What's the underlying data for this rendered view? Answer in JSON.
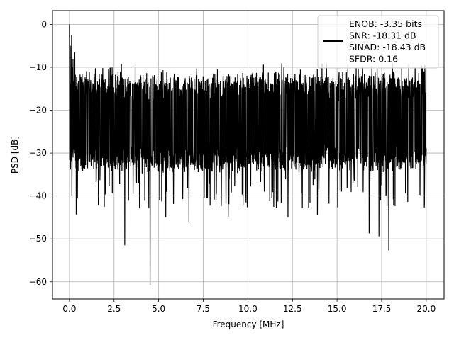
{
  "chart_data": {
    "type": "line",
    "title": "",
    "xlabel": "Frequency [MHz]",
    "ylabel": "PSD [dB]",
    "xlim": [
      -0.95,
      21.0
    ],
    "ylim": [
      -64,
      3.2
    ],
    "grid": true,
    "xticks": [
      0.0,
      2.5,
      5.0,
      7.5,
      10.0,
      12.5,
      15.0,
      17.5,
      20.0
    ],
    "xtick_labels": [
      "0.0",
      "2.5",
      "5.0",
      "7.5",
      "10.0",
      "12.5",
      "15.0",
      "17.5",
      "20.0"
    ],
    "yticks": [
      0,
      -10,
      -20,
      -30,
      -40,
      -50,
      -60
    ],
    "ytick_labels": [
      "0",
      "−10",
      "−20",
      "−30",
      "−40",
      "−50",
      "−60"
    ],
    "legend": {
      "placement": "top-right",
      "entries": [
        "ENOB: -3.35 bits",
        "SNR: -18.31 dB",
        "SINAD: -18.43 dB",
        "SFDR: 0.16"
      ]
    },
    "series": [
      {
        "color": "#000000",
        "x_range": [
          0.0,
          20.0
        ],
        "n_points": 2048,
        "baseline_mean_db": -21.5,
        "noise_band_db": [
          -33,
          -13
        ],
        "peaks": [
          {
            "x": 0.0,
            "y": 0.0
          },
          {
            "x": 0.02,
            "y": -27.0
          },
          {
            "x": 0.05,
            "y": -5.0
          },
          {
            "x": 0.12,
            "y": -2.5
          },
          {
            "x": 0.2,
            "y": -8.0
          },
          {
            "x": 0.3,
            "y": -6.5
          }
        ],
        "dips": [
          {
            "x": 0.38,
            "y": -44.3
          },
          {
            "x": 1.62,
            "y": -42.2
          },
          {
            "x": 3.1,
            "y": -51.5
          },
          {
            "x": 4.45,
            "y": -42.8
          },
          {
            "x": 4.52,
            "y": -60.8
          },
          {
            "x": 5.4,
            "y": -45.0
          },
          {
            "x": 6.7,
            "y": -46.0
          },
          {
            "x": 8.9,
            "y": -44.8
          },
          {
            "x": 12.25,
            "y": -45.0
          },
          {
            "x": 13.9,
            "y": -44.5
          },
          {
            "x": 16.8,
            "y": -48.7
          },
          {
            "x": 17.35,
            "y": -49.4
          },
          {
            "x": 17.9,
            "y": -52.7
          },
          {
            "x": 19.9,
            "y": -41.6
          }
        ]
      }
    ]
  }
}
